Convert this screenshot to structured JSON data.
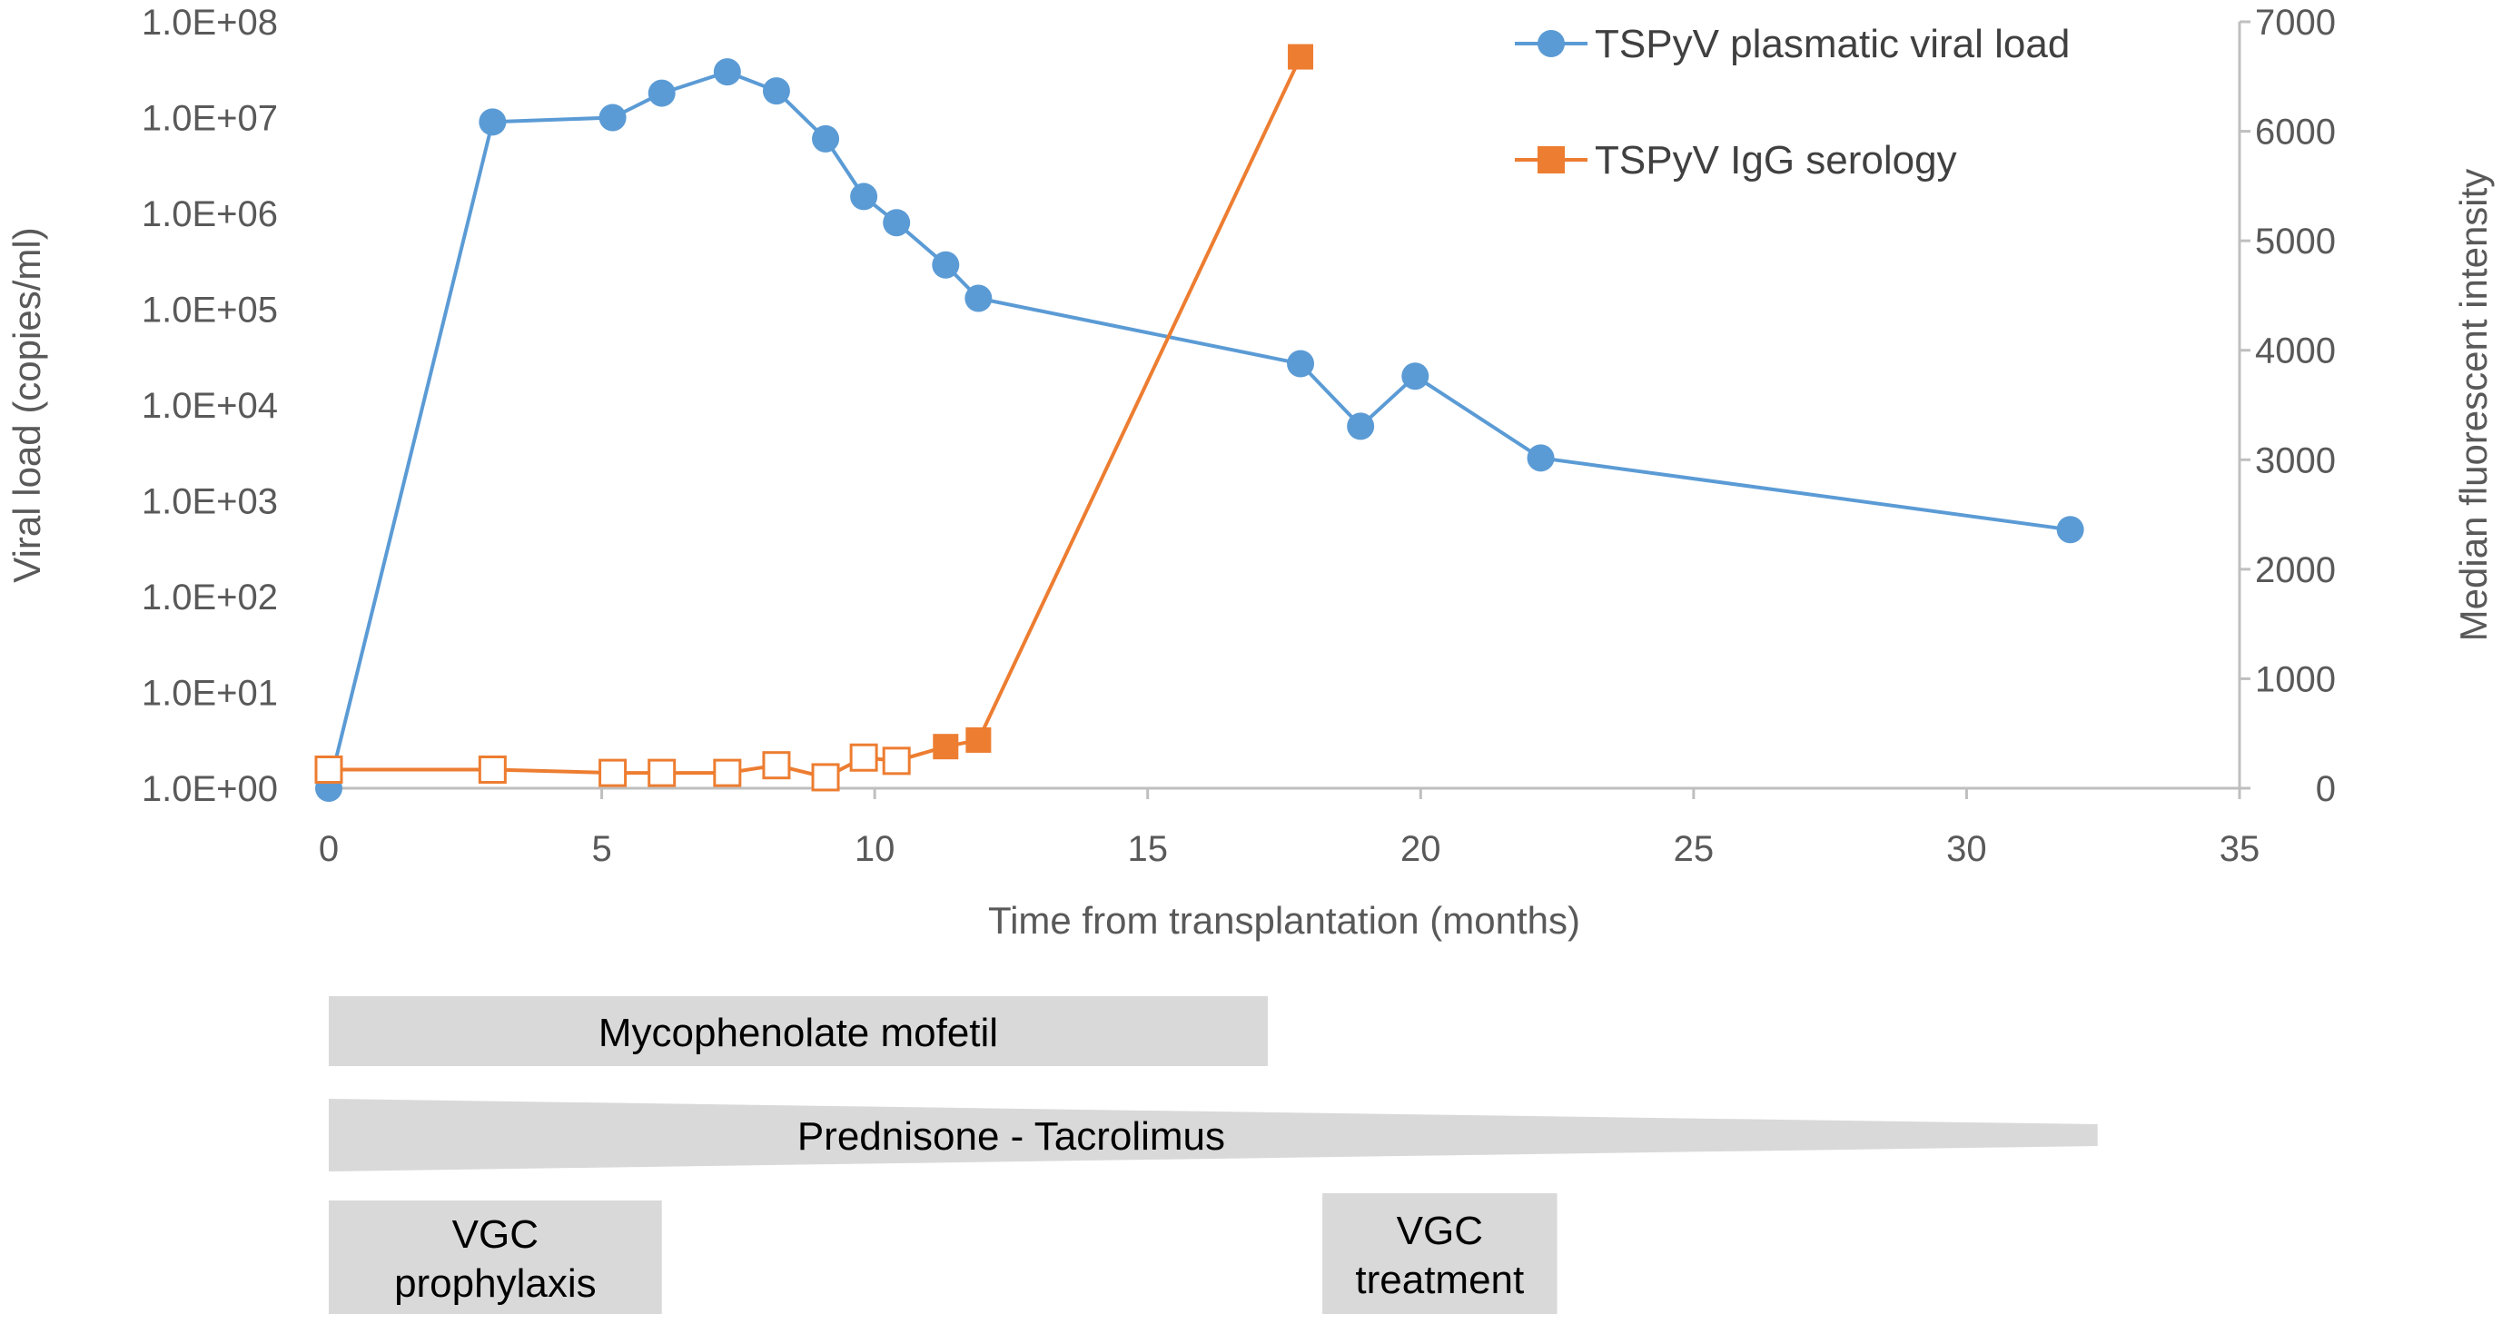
{
  "chart_data": {
    "type": "line",
    "xlabel": "Time from transplantation (months)",
    "ylabel_left": "Viral load (copies/ml)",
    "ylabel_right": "Median fluorescent intensity",
    "xlim": [
      0,
      35
    ],
    "xticks": [
      "0",
      "5",
      "10",
      "15",
      "20",
      "25",
      "30",
      "35"
    ],
    "ylim_left_log10": [
      0,
      8
    ],
    "yticks_left": [
      "1.0E+00",
      "1.0E+01",
      "1.0E+02",
      "1.0E+03",
      "1.0E+04",
      "1.0E+05",
      "1.0E+06",
      "1.0E+07",
      "1.0E+08"
    ],
    "ylim_right": [
      0,
      7000
    ],
    "yticks_right": [
      "0",
      "1000",
      "2000",
      "3000",
      "4000",
      "5000",
      "6000",
      "7000"
    ],
    "grid": false,
    "legend_position": "top-right",
    "series": [
      {
        "name": "TSPyV plasmatic viral load",
        "axis": "left",
        "color": "#5B9BD5",
        "marker": "circle",
        "points": [
          {
            "x": 0,
            "y": 1
          },
          {
            "x": 3,
            "y": 9000000
          },
          {
            "x": 5.2,
            "y": 10000000
          },
          {
            "x": 6.1,
            "y": 18000000
          },
          {
            "x": 7.3,
            "y": 30000000
          },
          {
            "x": 8.2,
            "y": 19000000
          },
          {
            "x": 9.1,
            "y": 6000000
          },
          {
            "x": 9.8,
            "y": 1500000
          },
          {
            "x": 10.4,
            "y": 800000
          },
          {
            "x": 11.3,
            "y": 290000
          },
          {
            "x": 11.9,
            "y": 130000
          },
          {
            "x": 17.8,
            "y": 27000
          },
          {
            "x": 18.9,
            "y": 6000
          },
          {
            "x": 19.9,
            "y": 20000
          },
          {
            "x": 22.2,
            "y": 2800
          },
          {
            "x": 31.9,
            "y": 500
          }
        ]
      },
      {
        "name": "TSPyV IgG serology",
        "axis": "right",
        "color": "#ED7D31",
        "marker": "square",
        "points": [
          {
            "x": 0,
            "y": 170,
            "filled": false
          },
          {
            "x": 3,
            "y": 170,
            "filled": false
          },
          {
            "x": 5.2,
            "y": 140,
            "filled": false
          },
          {
            "x": 6.1,
            "y": 140,
            "filled": false
          },
          {
            "x": 7.3,
            "y": 140,
            "filled": false
          },
          {
            "x": 8.2,
            "y": 210,
            "filled": false
          },
          {
            "x": 9.1,
            "y": 100,
            "filled": false
          },
          {
            "x": 9.8,
            "y": 280,
            "filled": false
          },
          {
            "x": 10.4,
            "y": 250,
            "filled": false
          },
          {
            "x": 11.3,
            "y": 380,
            "filled": true
          },
          {
            "x": 11.9,
            "y": 440,
            "filled": true
          },
          {
            "x": 17.8,
            "y": 6680,
            "filled": true
          }
        ]
      }
    ],
    "treatments": [
      {
        "label_lines": [
          "Mycophenolate mofetil"
        ],
        "start": 0,
        "end": 17.2,
        "shape": "rect"
      },
      {
        "label_lines": [
          "Prednisone - Tacrolimus"
        ],
        "start": 0,
        "end": 32.4,
        "shape": "taper"
      },
      {
        "label_lines": [
          "VGC",
          "prophylaxis"
        ],
        "start": 0,
        "end": 6.1,
        "shape": "rect"
      },
      {
        "label_lines": [
          "VGC",
          "treatment"
        ],
        "start": 18.2,
        "end": 22.5,
        "shape": "rect"
      }
    ],
    "treatment_color": "#D9D9D9"
  }
}
